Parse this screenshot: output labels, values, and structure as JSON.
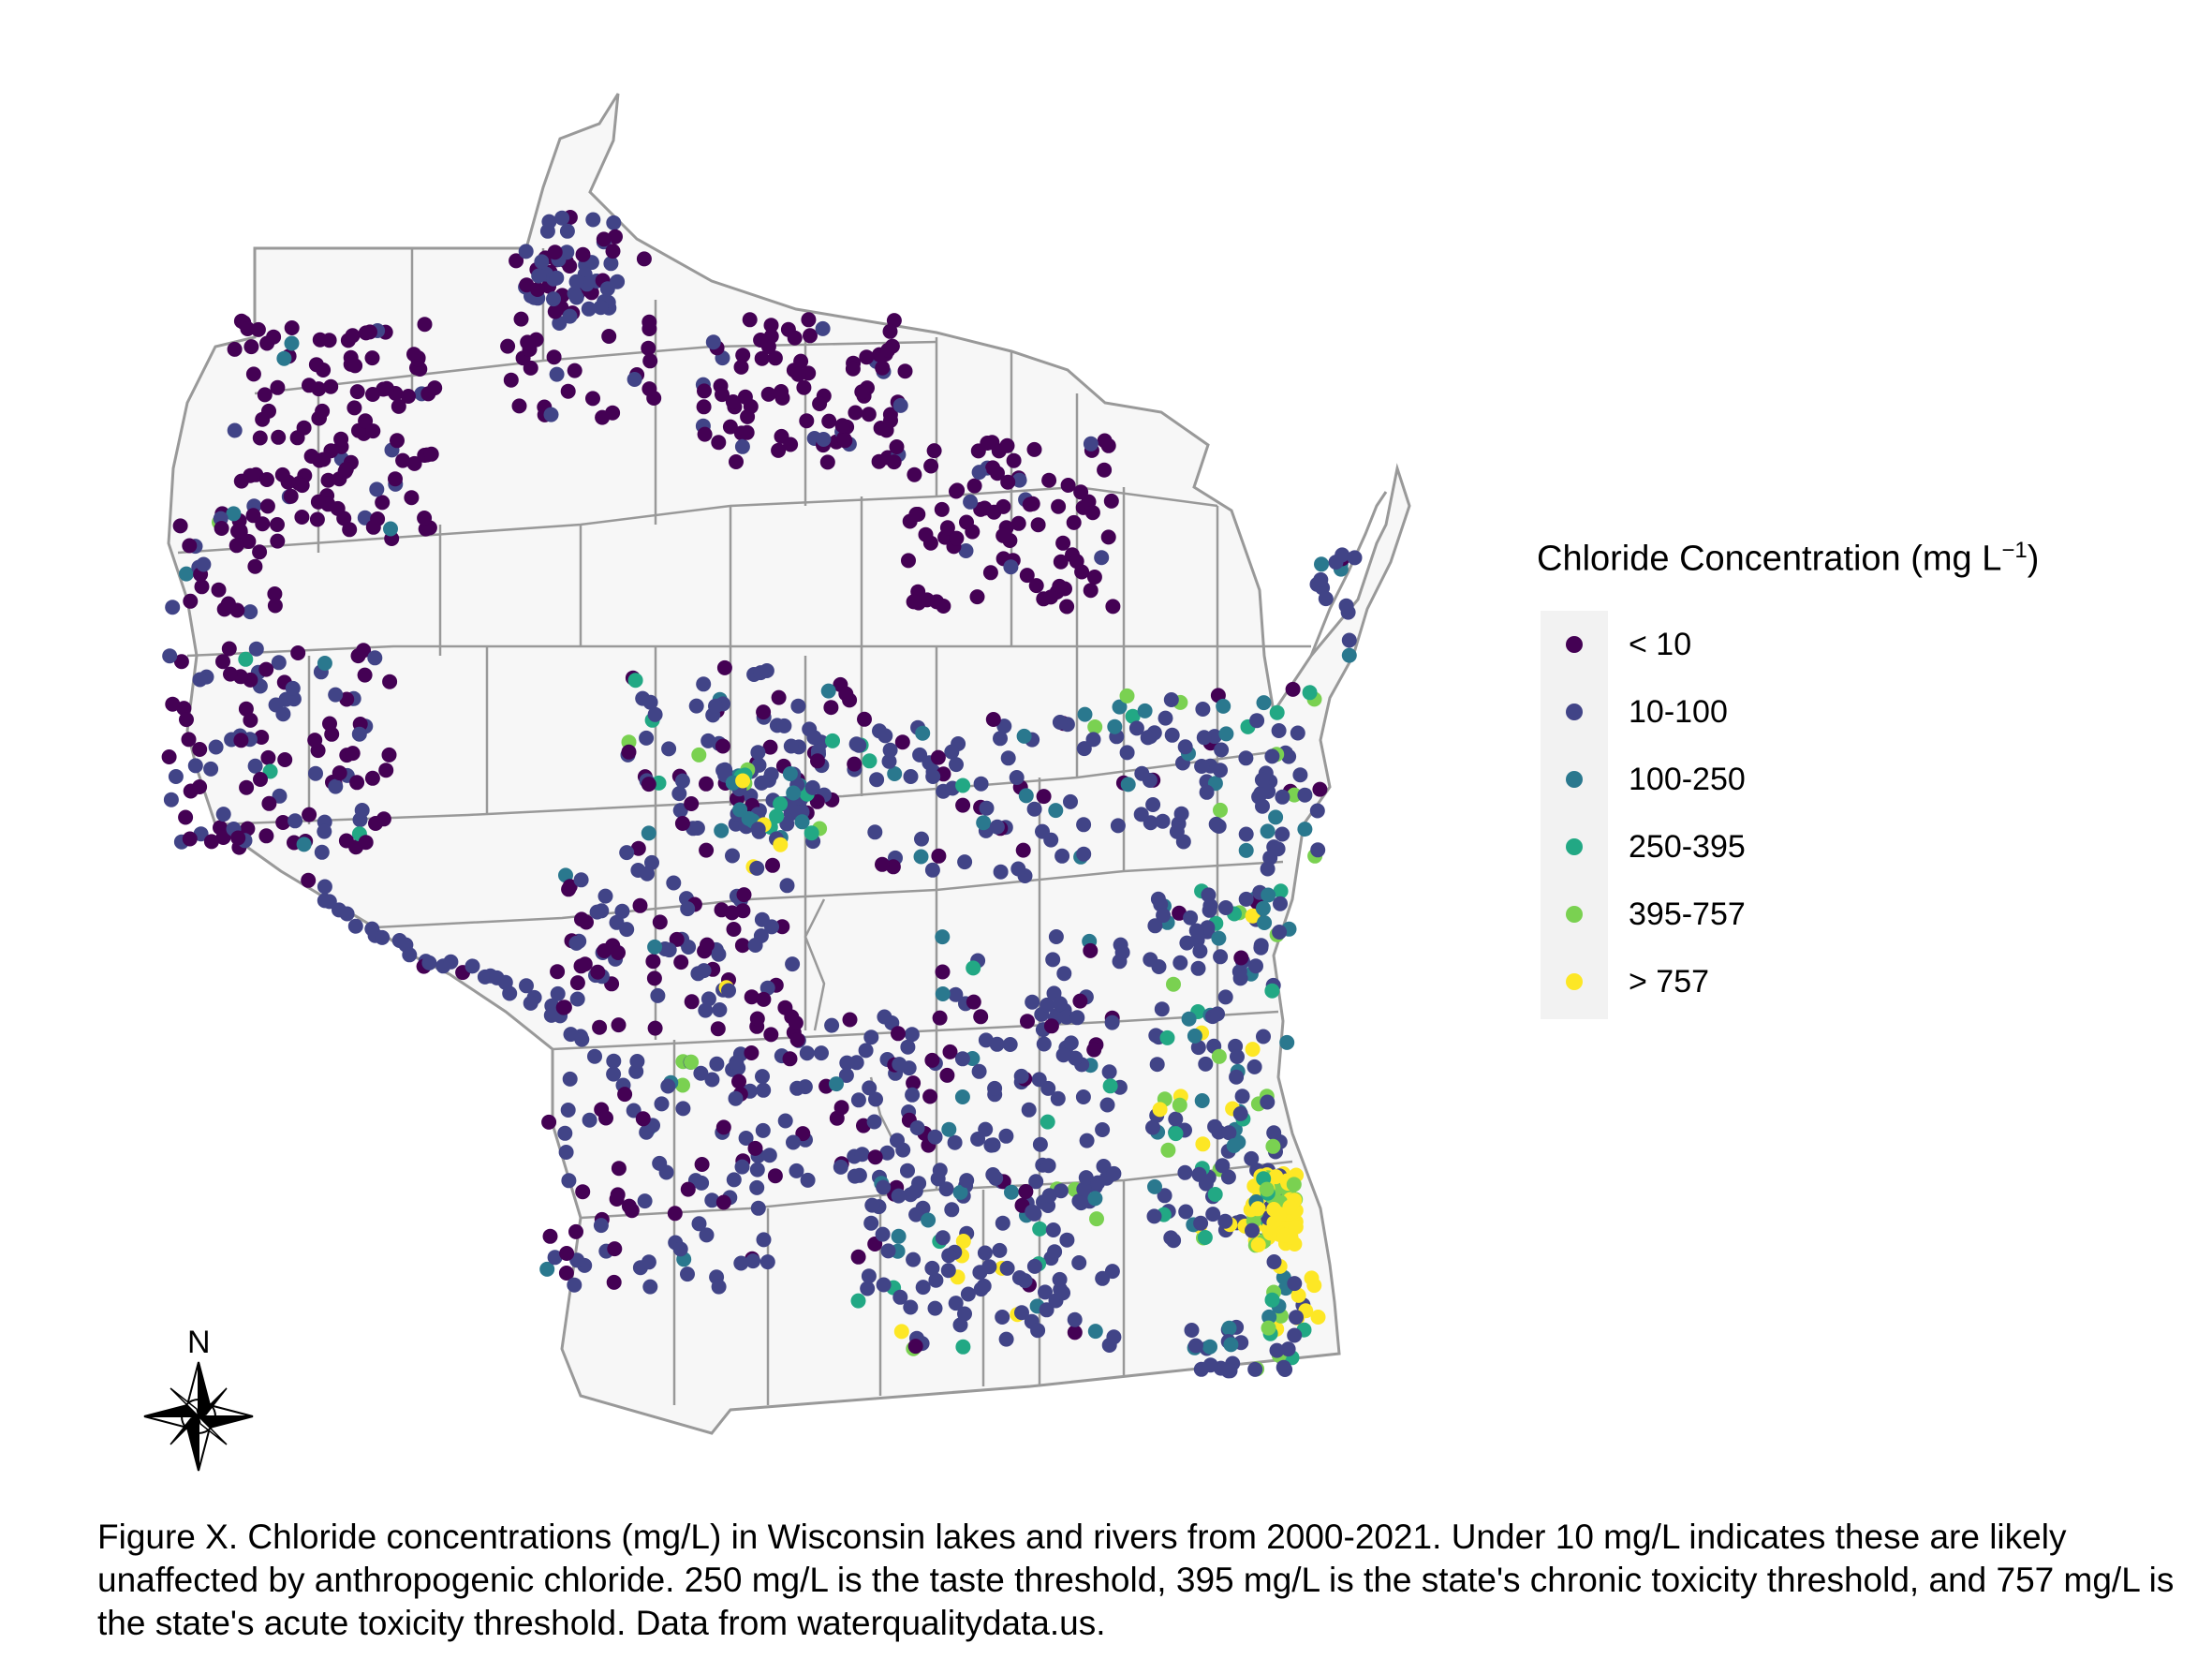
{
  "legend": {
    "title": "Chloride Concentration (mg L",
    "title_superscript": "−1",
    "title_close": ")",
    "items": [
      {
        "label": "< 10",
        "color": "#440154"
      },
      {
        "label": "10-100",
        "color": "#414487"
      },
      {
        "label": "100-250",
        "color": "#2a788e"
      },
      {
        "label": "250-395",
        "color": "#22a884"
      },
      {
        "label": "395-757",
        "color": "#7ad151"
      },
      {
        "label": "> 757",
        "color": "#fde725"
      }
    ]
  },
  "north_arrow": {
    "label": "N",
    "icon": "compass-rose-icon"
  },
  "caption": "Figure X. Chloride concentrations (mg/L) in Wisconsin lakes and rivers from 2000-2021. Under 10 mg/L indicates these are likely unaffected by anthropogenic chloride. 250 mg/L is the taste threshold, 395 mg/L is the state's chronic toxicity threshold, and 757 mg/L is the state's acute toxicity threshold. Data from waterqualitydata.us.",
  "map": {
    "state_fill": "#f7f7f7",
    "county_line_color": "#999999"
  }
}
